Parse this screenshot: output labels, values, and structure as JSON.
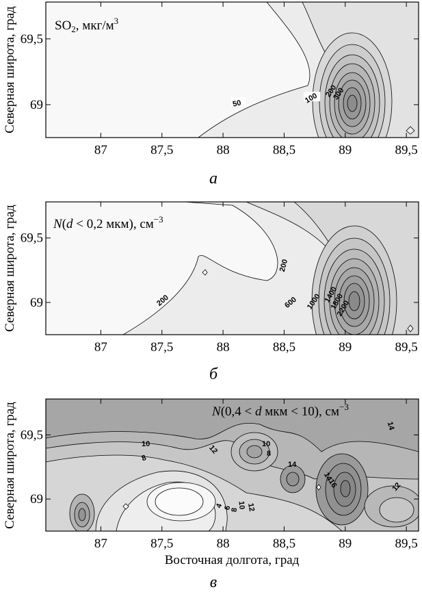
{
  "chart_data": [
    {
      "type": "contour",
      "title": "SO₂, мкг/м³",
      "caption": "а",
      "ylabel": "Северная широта, град",
      "xlabel": "",
      "xlim": [
        86.55,
        89.6
      ],
      "ylim": [
        68.75,
        69.78
      ],
      "x_ticks": [
        "87",
        "87,5",
        "88",
        "88,5",
        "89",
        "89,5"
      ],
      "y_ticks": [
        "69",
        "69,5"
      ],
      "contour_labels": [
        "50",
        "100",
        "200",
        "300"
      ],
      "grid": false,
      "peak": {
        "x": 89.05,
        "y": 69.0
      },
      "fill": {
        "low": "#f8f8f8",
        "high": "#8f8f8f"
      }
    },
    {
      "type": "contour",
      "title": "N(d < 0,2 мкм), см⁻³",
      "caption": "б",
      "ylabel": "Северная широта, град",
      "xlabel": "",
      "xlim": [
        86.55,
        89.6
      ],
      "ylim": [
        68.75,
        69.78
      ],
      "x_ticks": [
        "87",
        "87,5",
        "88",
        "88,5",
        "89",
        "89,5"
      ],
      "y_ticks": [
        "69",
        "69,5"
      ],
      "contour_labels": [
        "200",
        "200",
        "600",
        "1000",
        "1400",
        "1800",
        "2200"
      ],
      "grid": false,
      "peak": {
        "x": 89.05,
        "y": 69.0
      },
      "fill": {
        "low": "#f8f8f8",
        "high": "#8f8f8f"
      }
    },
    {
      "type": "contour",
      "title": "N(0,4 < d мкм < 10), см⁻³",
      "caption": "в",
      "ylabel": "Северная широта, град",
      "xlabel": "Восточная долгота, град",
      "xlim": [
        86.55,
        89.6
      ],
      "ylim": [
        68.75,
        69.78
      ],
      "x_ticks": [
        "87",
        "87,5",
        "88",
        "88,5",
        "89",
        "89,5"
      ],
      "y_ticks": [
        "69",
        "69,5"
      ],
      "contour_labels": [
        "10",
        "8",
        "12",
        "10",
        "8",
        "14",
        "4",
        "6",
        "8",
        "10",
        "12",
        "14",
        "16",
        "14",
        "12"
      ],
      "grid": false,
      "fill": {
        "low": "#f8f8f8",
        "high": "#8f8f8f"
      }
    }
  ]
}
